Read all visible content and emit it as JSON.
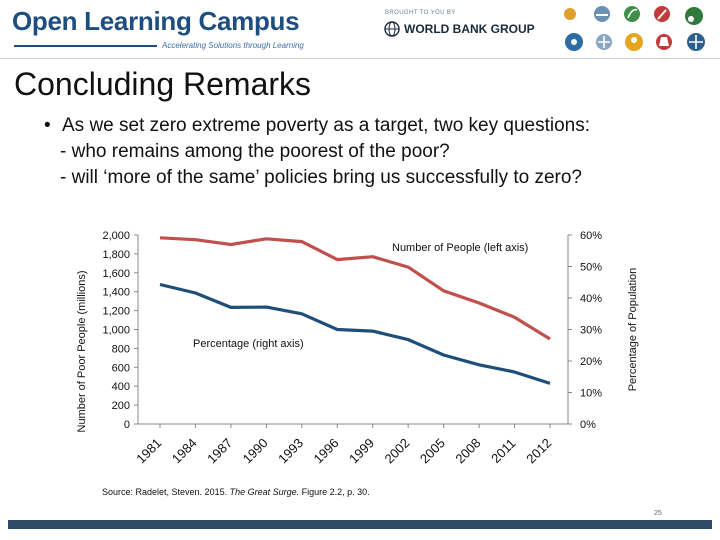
{
  "banner": {
    "title": "Open Learning Campus",
    "tagline": "Accelerating Solutions through Learning",
    "brought_by": "BROUGHT TO YOU BY",
    "org": "WORLD BANK GROUP",
    "icons": [
      "sun-icon",
      "handshake-icon",
      "leaf-icon",
      "pencil-icon",
      "tractor-icon",
      "gear-icon",
      "scale-icon",
      "bulb-icon",
      "flask-icon",
      "windmill-icon"
    ]
  },
  "slide": {
    "title": "Concluding Remarks",
    "bullet": "As we set zero extreme poverty as a target, two key questions:",
    "sub1": "- who remains among the poorest of the poor?",
    "sub2": "- will ‘more of the same’ policies bring us successfully to zero?"
  },
  "chart_data": {
    "type": "line",
    "ylabel_left": "Number of Poor People (millions)",
    "ylabel_right": "Percentage of Population",
    "ylim_left": [
      0,
      2000
    ],
    "ylim_right": [
      0,
      60
    ],
    "yticks_left": [
      "0",
      "200",
      "400",
      "600",
      "800",
      "1,000",
      "1,200",
      "1,400",
      "1,600",
      "1,800",
      "2,000"
    ],
    "yticks_right": [
      "0%",
      "10%",
      "20%",
      "30%",
      "40%",
      "50%",
      "60%"
    ],
    "x": [
      "1981",
      "1984",
      "1987",
      "1990",
      "1993",
      "1996",
      "1999",
      "2002",
      "2005",
      "2008",
      "2011",
      "2012"
    ],
    "series": [
      {
        "name": "Number of People (left axis)",
        "axis": "left",
        "color": "#c0504d",
        "values": [
          1970,
          1950,
          1900,
          1960,
          1930,
          1740,
          1770,
          1660,
          1410,
          1280,
          1130,
          900
        ]
      },
      {
        "name": "Percentage (right axis)",
        "axis": "right",
        "color": "#1f4e79",
        "values": [
          44.3,
          41.6,
          37.0,
          37.1,
          35.0,
          30.0,
          29.5,
          26.8,
          21.9,
          18.8,
          16.5,
          12.9
        ]
      }
    ],
    "grid": false
  },
  "source": {
    "prefix": "Source:  Radelet, Steven.  2015.  ",
    "book": "The Great Surge.",
    "suffix": "  Figure 2.2, p. 30."
  },
  "page_number": "25",
  "colors": {
    "brand": "#1d4e80",
    "footer": "#2f4a65"
  }
}
